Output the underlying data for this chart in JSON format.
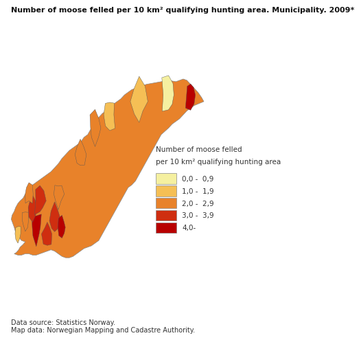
{
  "title": "Number of moose felled per 10 km² qualifying hunting area. Municipality. 2009*",
  "legend_title_line1": "Number of moose felled",
  "legend_title_line2": "per 10 km² qualifying hunting area",
  "legend_labels": [
    "0,0 -  0,9",
    "1,0 -  1,9",
    "2,0 -  2,9",
    "3,0 -  3,9",
    "4,0-"
  ],
  "legend_colors": [
    "#f5f0a0",
    "#f5bf55",
    "#e8822a",
    "#cf2e10",
    "#b80000"
  ],
  "footnote1": "Data source: Statistics Norway.",
  "footnote2": "Map data: Norwegian Mapping and Cadastre Authority.",
  "bg_color": "#ffffff",
  "title_fontsize": 8.0,
  "footnote_fontsize": 7.0,
  "legend_title_fontsize": 7.5,
  "legend_fontsize": 7.5
}
